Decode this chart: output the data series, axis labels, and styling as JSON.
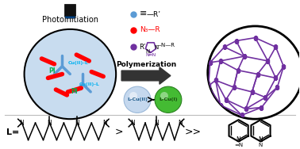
{
  "bg_color": "#ffffff",
  "photoinitiation_label": "Photoinitiation",
  "polymerization_label": "Polymerization",
  "L_label": "L=",
  "lcuII_label": "L-Cu(II)",
  "lcuI_label": "L-Cu(I)",
  "PI_label": "PI",
  "CuII_L_label": "Cu(II)-L",
  "blue_color": "#5B9BD5",
  "red_color": "#FF0000",
  "purple_color": "#7030A0",
  "cyan_color": "#00B0F0",
  "green_color": "#00B050",
  "light_blue_sphere": "#AEC6E8",
  "light_green_sphere": "#44BB44",
  "circle_fill": "#C8DCEF",
  "black": "#000000"
}
